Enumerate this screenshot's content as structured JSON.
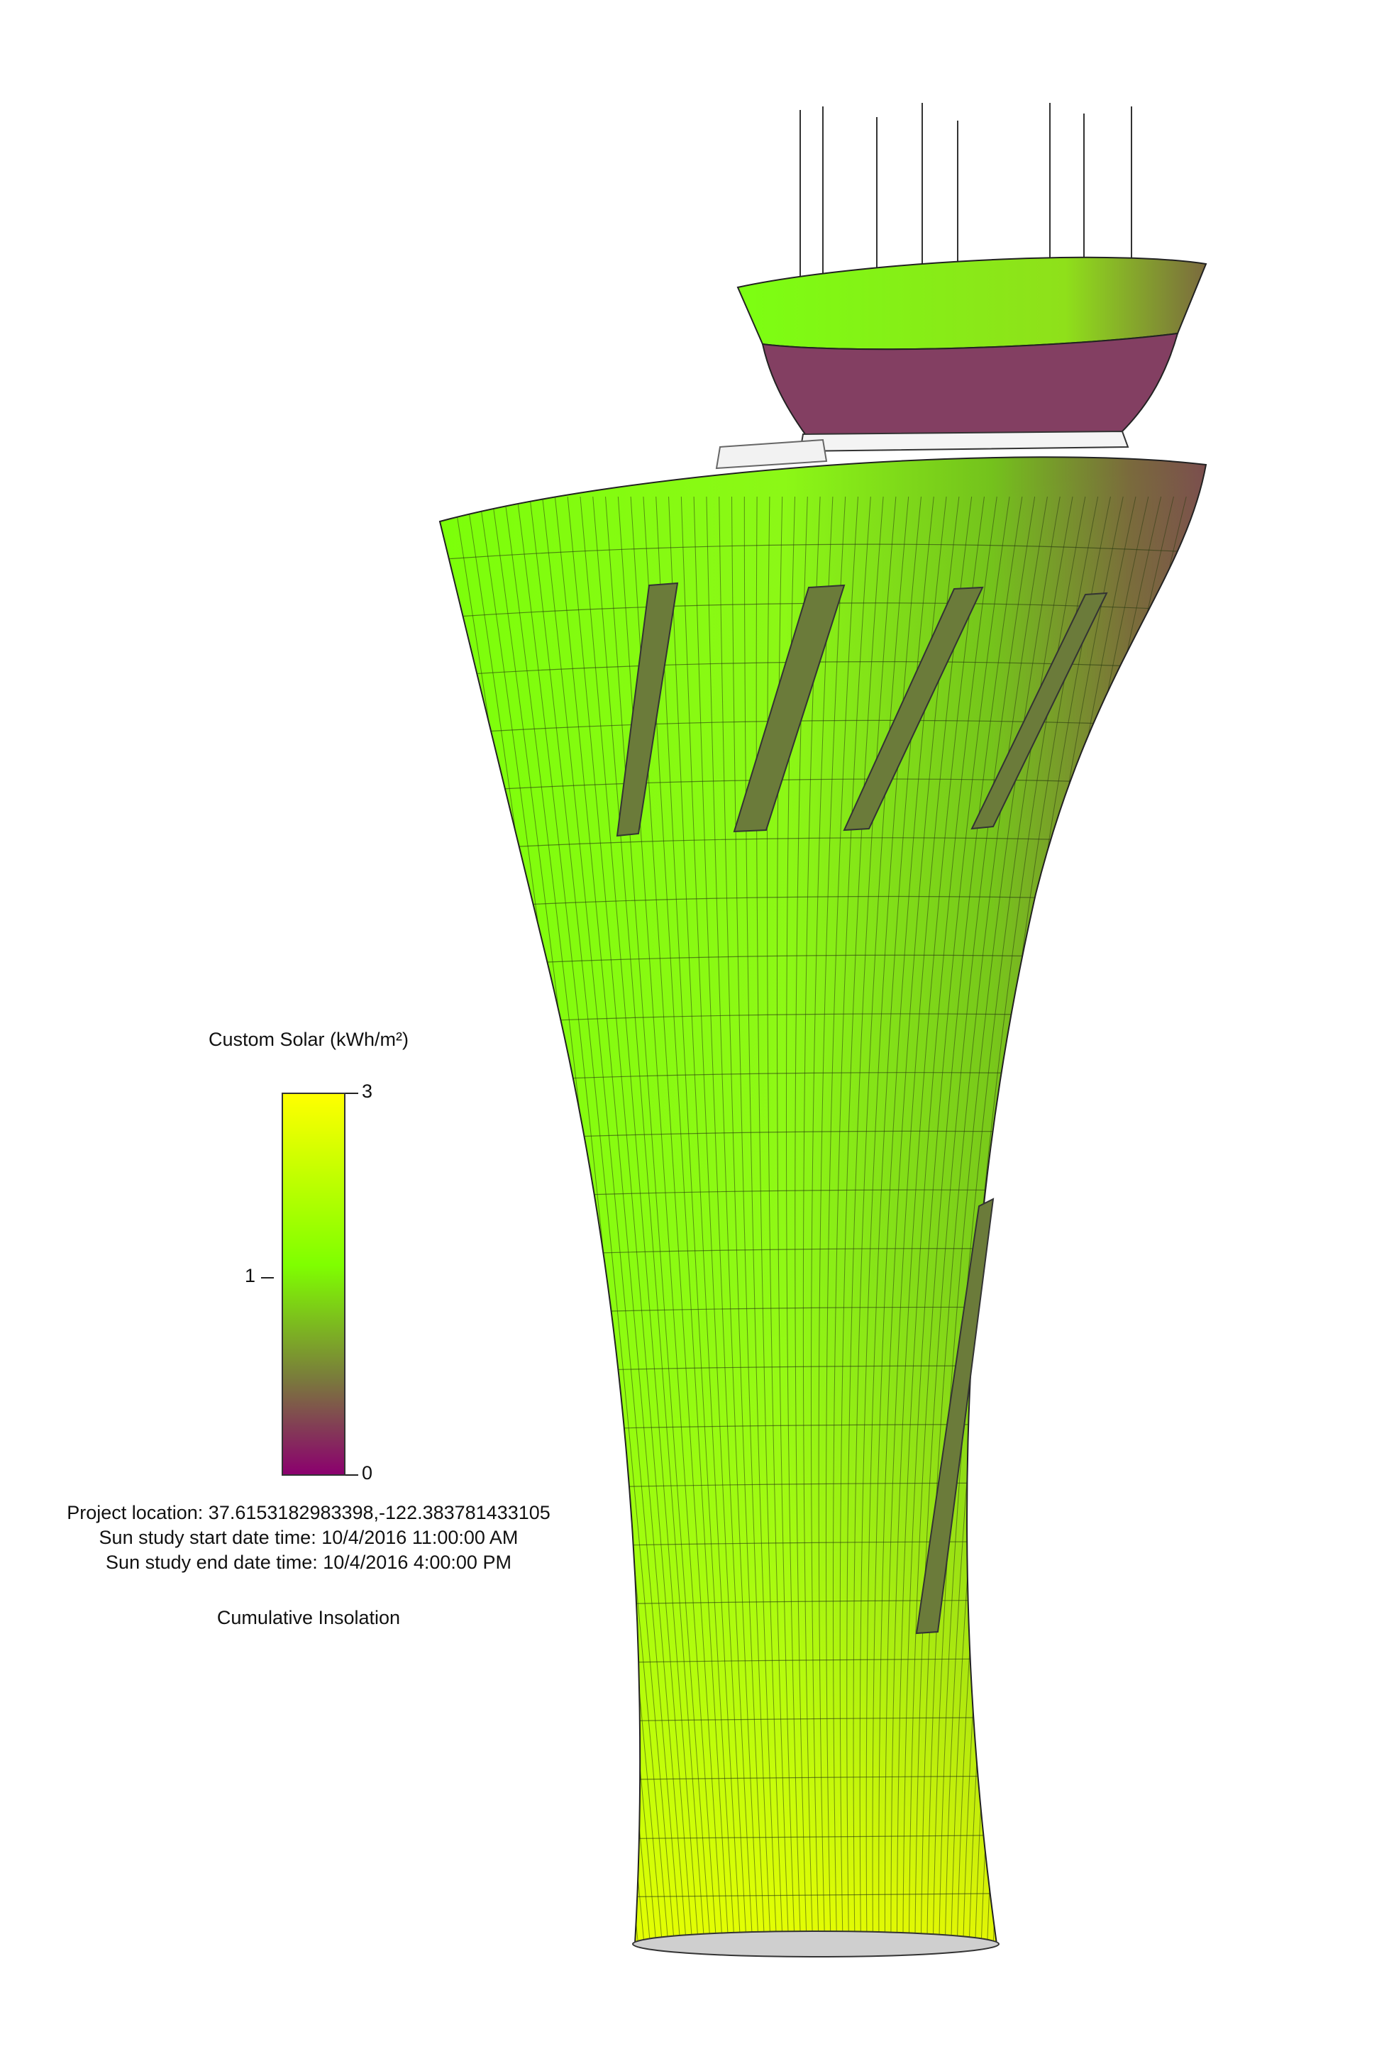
{
  "legend": {
    "title": "Custom Solar (kWh/m²)",
    "ticks": [
      {
        "label": "3",
        "value": 3
      },
      {
        "label": "1",
        "value": 1
      },
      {
        "label": "0",
        "value": 0
      }
    ],
    "colors": {
      "high": "#ffff00",
      "mid": "#7fff00",
      "mid_low": "#7a7a3c",
      "low": "#8b006e"
    }
  },
  "study_info": {
    "project_location": "Project location: 37.6153182983398,-122.383781433105",
    "start": "Sun study start date time: 10/4/2016 11:00:00 AM",
    "end": "Sun study end date time: 10/4/2016 4:00:00 PM"
  },
  "analysis_type": "Cumulative Insolation"
}
